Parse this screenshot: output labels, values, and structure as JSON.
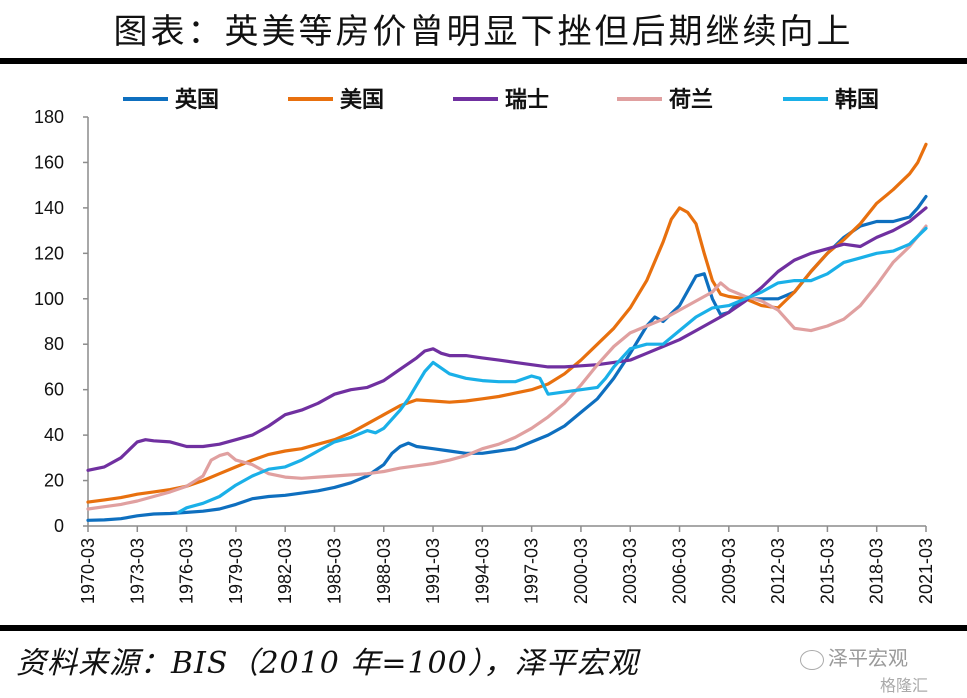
{
  "title": "图表：英美等房价曾明显下挫但后期继续向上",
  "source": "资料来源：BIS（2010 年=100），泽平宏观",
  "watermark": {
    "primary": "泽平宏观",
    "secondary": "格隆汇"
  },
  "chart_data": {
    "type": "line",
    "title": "图表：英美等房价曾明显下挫但后期继续向上",
    "xlabel": "",
    "ylabel": "",
    "ylim": [
      0,
      180
    ],
    "yticks": [
      0,
      20,
      40,
      60,
      80,
      100,
      120,
      140,
      160,
      180
    ],
    "xlim": [
      1970.0,
      2021.0
    ],
    "xtick_labels": [
      "1970-03",
      "1973-03",
      "1976-03",
      "1979-03",
      "1982-03",
      "1985-03",
      "1988-03",
      "1991-03",
      "1994-03",
      "1997-03",
      "2000-03",
      "2003-03",
      "2006-03",
      "2009-03",
      "2012-03",
      "2015-03",
      "2018-03",
      "2021-03"
    ],
    "grid": false,
    "legend_position": "top",
    "series": [
      {
        "name": "英国",
        "color": "#0E6FBF",
        "x": [
          1970,
          1971,
          1972,
          1973,
          1974,
          1975,
          1976,
          1977,
          1978,
          1979,
          1980,
          1981,
          1982,
          1983,
          1984,
          1985,
          1986,
          1987,
          1988,
          1988.5,
          1989,
          1989.5,
          1990,
          1991,
          1992,
          1993,
          1994,
          1995,
          1996,
          1997,
          1998,
          1999,
          2000,
          2001,
          2002,
          2003,
          2004,
          2004.5,
          2005,
          2006,
          2007,
          2007.5,
          2008,
          2008.5,
          2009,
          2009.5,
          2010,
          2011,
          2012,
          2013,
          2014,
          2015,
          2016,
          2017,
          2018,
          2019,
          2020,
          2020.5,
          2021
        ],
        "values": [
          2.5,
          2.7,
          3.2,
          4.5,
          5.3,
          5.5,
          6,
          6.5,
          7.5,
          9.5,
          12,
          13,
          13.5,
          14.5,
          15.5,
          17,
          19,
          22,
          27,
          32,
          35,
          36.5,
          35,
          34,
          33,
          32,
          32,
          33,
          34,
          37,
          40,
          44,
          50,
          56,
          65,
          76,
          88,
          92,
          90,
          97,
          110,
          111,
          100,
          93,
          94,
          98,
          100,
          100,
          100,
          103,
          112,
          120,
          127,
          132,
          134,
          134,
          136,
          140,
          145
        ]
      },
      {
        "name": "美国",
        "color": "#E8700E",
        "x": [
          1970,
          1971,
          1972,
          1973,
          1974,
          1975,
          1976,
          1977,
          1978,
          1979,
          1980,
          1981,
          1982,
          1983,
          1984,
          1985,
          1986,
          1987,
          1988,
          1989,
          1990,
          1991,
          1992,
          1993,
          1994,
          1995,
          1996,
          1997,
          1998,
          1999,
          2000,
          2001,
          2002,
          2003,
          2004,
          2005,
          2005.5,
          2006,
          2006.5,
          2007,
          2007.5,
          2008,
          2008.5,
          2009,
          2010,
          2011,
          2012,
          2013,
          2014,
          2015,
          2016,
          2017,
          2018,
          2019,
          2020,
          2020.5,
          2021
        ],
        "values": [
          10.5,
          11.5,
          12.5,
          14,
          15,
          16,
          17.5,
          20,
          23,
          26,
          29,
          31.5,
          33,
          34,
          36,
          38,
          41,
          45,
          49,
          53,
          55.5,
          55,
          54.5,
          55,
          56,
          57,
          58.5,
          60,
          62.5,
          67,
          73,
          80,
          87,
          96,
          108,
          125,
          135,
          140,
          138,
          133,
          120,
          108,
          102,
          101,
          100,
          97,
          96,
          103,
          112,
          120,
          126,
          133,
          142,
          148,
          155,
          160,
          168
        ]
      },
      {
        "name": "瑞士",
        "color": "#7030A0",
        "x": [
          1970,
          1971,
          1972,
          1973,
          1973.5,
          1974,
          1975,
          1976,
          1977,
          1978,
          1979,
          1980,
          1981,
          1982,
          1983,
          1984,
          1985,
          1986,
          1987,
          1988,
          1989,
          1990,
          1990.5,
          1991,
          1991.5,
          1992,
          1993,
          1994,
          1995,
          1996,
          1997,
          1998,
          1999,
          2000,
          2001,
          2002,
          2003,
          2004,
          2005,
          2006,
          2007,
          2008,
          2009,
          2010,
          2011,
          2012,
          2013,
          2014,
          2015,
          2016,
          2017,
          2018,
          2019,
          2020,
          2021
        ],
        "values": [
          24.5,
          26,
          30,
          37,
          38,
          37.5,
          37,
          35,
          35,
          36,
          38,
          40,
          44,
          49,
          51,
          54,
          58,
          60,
          61,
          64,
          69,
          74,
          77,
          78,
          76,
          75,
          75,
          74,
          73,
          72,
          71,
          70,
          70,
          70.5,
          71,
          72,
          73,
          76,
          79,
          82,
          86,
          90,
          94,
          99,
          105,
          112,
          117,
          120,
          122,
          124,
          123,
          127,
          130,
          134,
          140
        ]
      },
      {
        "name": "荷兰",
        "color": "#E0A0A0",
        "x": [
          1970,
          1971,
          1972,
          1973,
          1974,
          1975,
          1976,
          1977,
          1977.5,
          1978,
          1978.5,
          1979,
          1980,
          1981,
          1982,
          1983,
          1984,
          1985,
          1986,
          1987,
          1988,
          1989,
          1990,
          1991,
          1992,
          1993,
          1994,
          1995,
          1996,
          1997,
          1998,
          1999,
          2000,
          2001,
          2002,
          2003,
          2004,
          2005,
          2006,
          2007,
          2008,
          2008.5,
          2009,
          2010,
          2011,
          2012,
          2013,
          2014,
          2015,
          2016,
          2017,
          2018,
          2019,
          2020,
          2021
        ],
        "values": [
          7.5,
          8.5,
          9.5,
          11,
          13,
          15,
          17.5,
          22,
          29,
          31,
          32,
          29,
          27,
          23,
          21.5,
          21,
          21.5,
          22,
          22.5,
          23,
          24,
          25.5,
          26.5,
          27.5,
          29,
          31,
          34,
          36,
          39,
          43,
          48,
          54,
          62,
          71,
          79,
          85,
          88,
          91,
          95,
          99,
          103,
          107,
          104,
          101,
          99,
          95,
          87,
          86,
          88,
          91,
          97,
          106,
          116,
          123,
          132
        ]
      },
      {
        "name": "韩国",
        "color": "#1AB0E8",
        "x": [
          1975.5,
          1976,
          1977,
          1978,
          1979,
          1980,
          1981,
          1982,
          1983,
          1984,
          1985,
          1986,
          1987,
          1987.5,
          1988,
          1989,
          1989.5,
          1990,
          1990.5,
          1991,
          1992,
          1993,
          1994,
          1995,
          1996,
          1997,
          1997.5,
          1998,
          1999,
          2000,
          2001,
          2001.5,
          2002,
          2003,
          2004,
          2005,
          2006,
          2007,
          2008,
          2009,
          2010,
          2011,
          2012,
          2013,
          2014,
          2015,
          2016,
          2017,
          2018,
          2019,
          2020,
          2021
        ],
        "values": [
          6,
          8,
          10,
          13,
          18,
          22,
          25,
          26,
          29,
          33,
          37,
          39,
          42,
          41,
          43,
          51,
          56,
          62,
          68,
          72,
          67,
          65,
          64,
          63.5,
          63.5,
          66,
          65,
          58,
          59,
          60,
          61,
          65,
          70,
          78,
          80,
          80,
          86,
          92,
          96,
          97,
          100,
          103,
          107,
          108,
          108,
          111,
          116,
          118,
          120,
          121,
          124,
          131
        ]
      }
    ]
  }
}
